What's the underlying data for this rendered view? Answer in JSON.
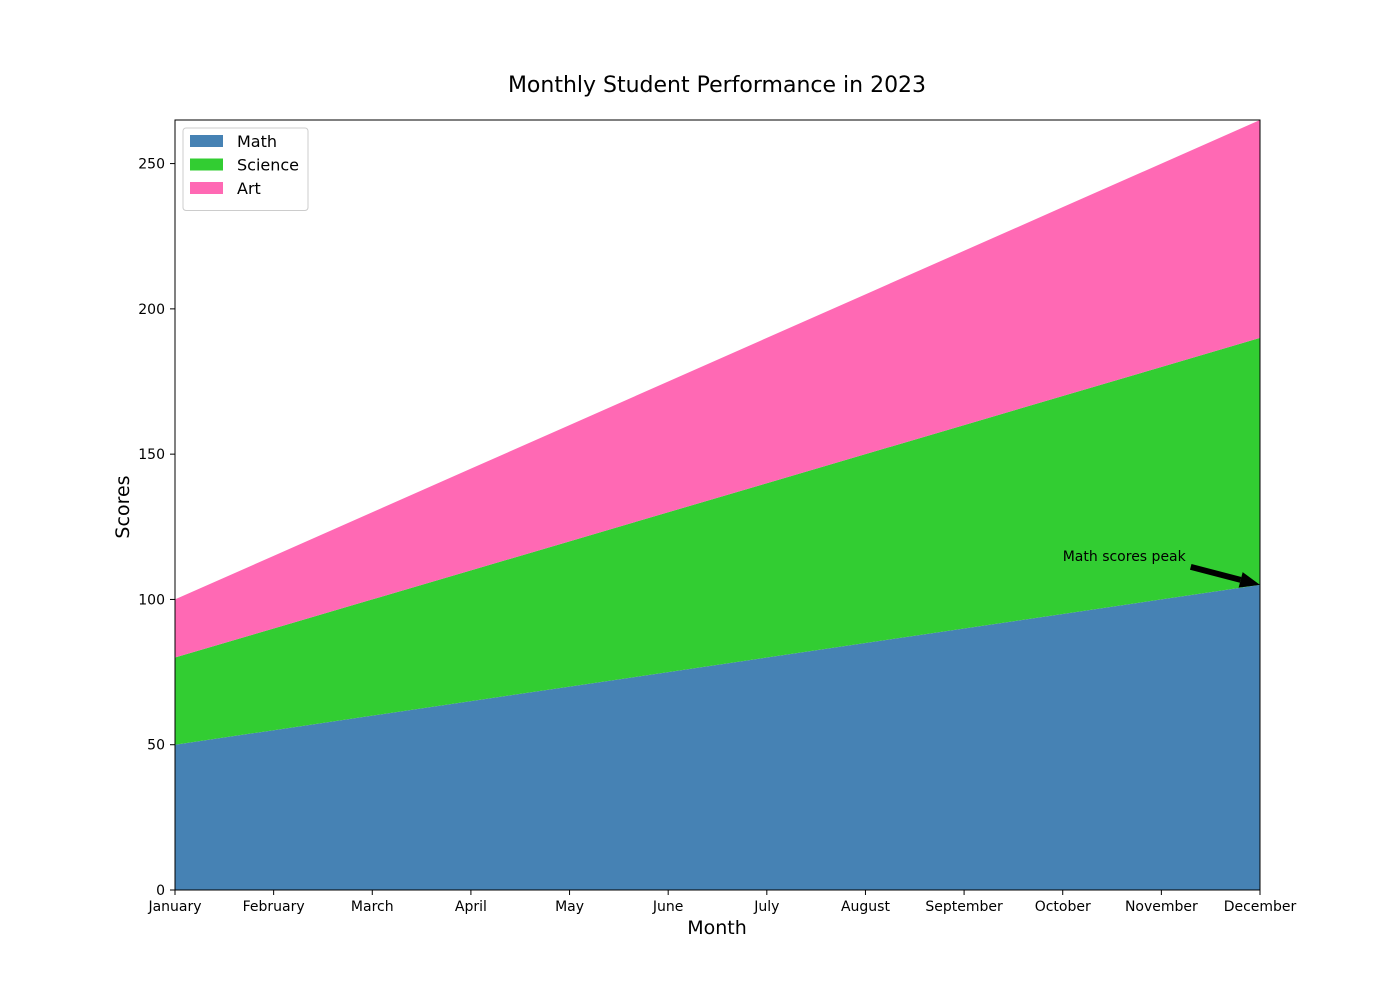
{
  "chart_data": {
    "type": "area",
    "stacked": true,
    "title": "Monthly Student Performance in 2023",
    "xlabel": "Month",
    "ylabel": "Scores",
    "categories": [
      "January",
      "February",
      "March",
      "April",
      "May",
      "June",
      "July",
      "August",
      "September",
      "October",
      "November",
      "December"
    ],
    "series": [
      {
        "name": "Math",
        "color": "#4682B4",
        "values": [
          50,
          55,
          60,
          65,
          70,
          75,
          80,
          85,
          90,
          95,
          100,
          105
        ]
      },
      {
        "name": "Science",
        "color": "#32CD32",
        "values": [
          30,
          35,
          40,
          45,
          50,
          55,
          60,
          65,
          70,
          75,
          80,
          85
        ]
      },
      {
        "name": "Art",
        "color": "#FF69B4",
        "values": [
          20,
          25,
          30,
          35,
          40,
          45,
          50,
          55,
          60,
          65,
          70,
          75
        ]
      }
    ],
    "ylim": [
      0,
      265
    ],
    "yticks": [
      0,
      50,
      100,
      150,
      200,
      250
    ],
    "grid": false,
    "legend_position": "top-left",
    "annotations": [
      {
        "text": "Math scores peak",
        "target": {
          "x": "December",
          "y": 105
        },
        "text_anchor_point": {
          "x": "October",
          "y": 115
        }
      }
    ]
  }
}
